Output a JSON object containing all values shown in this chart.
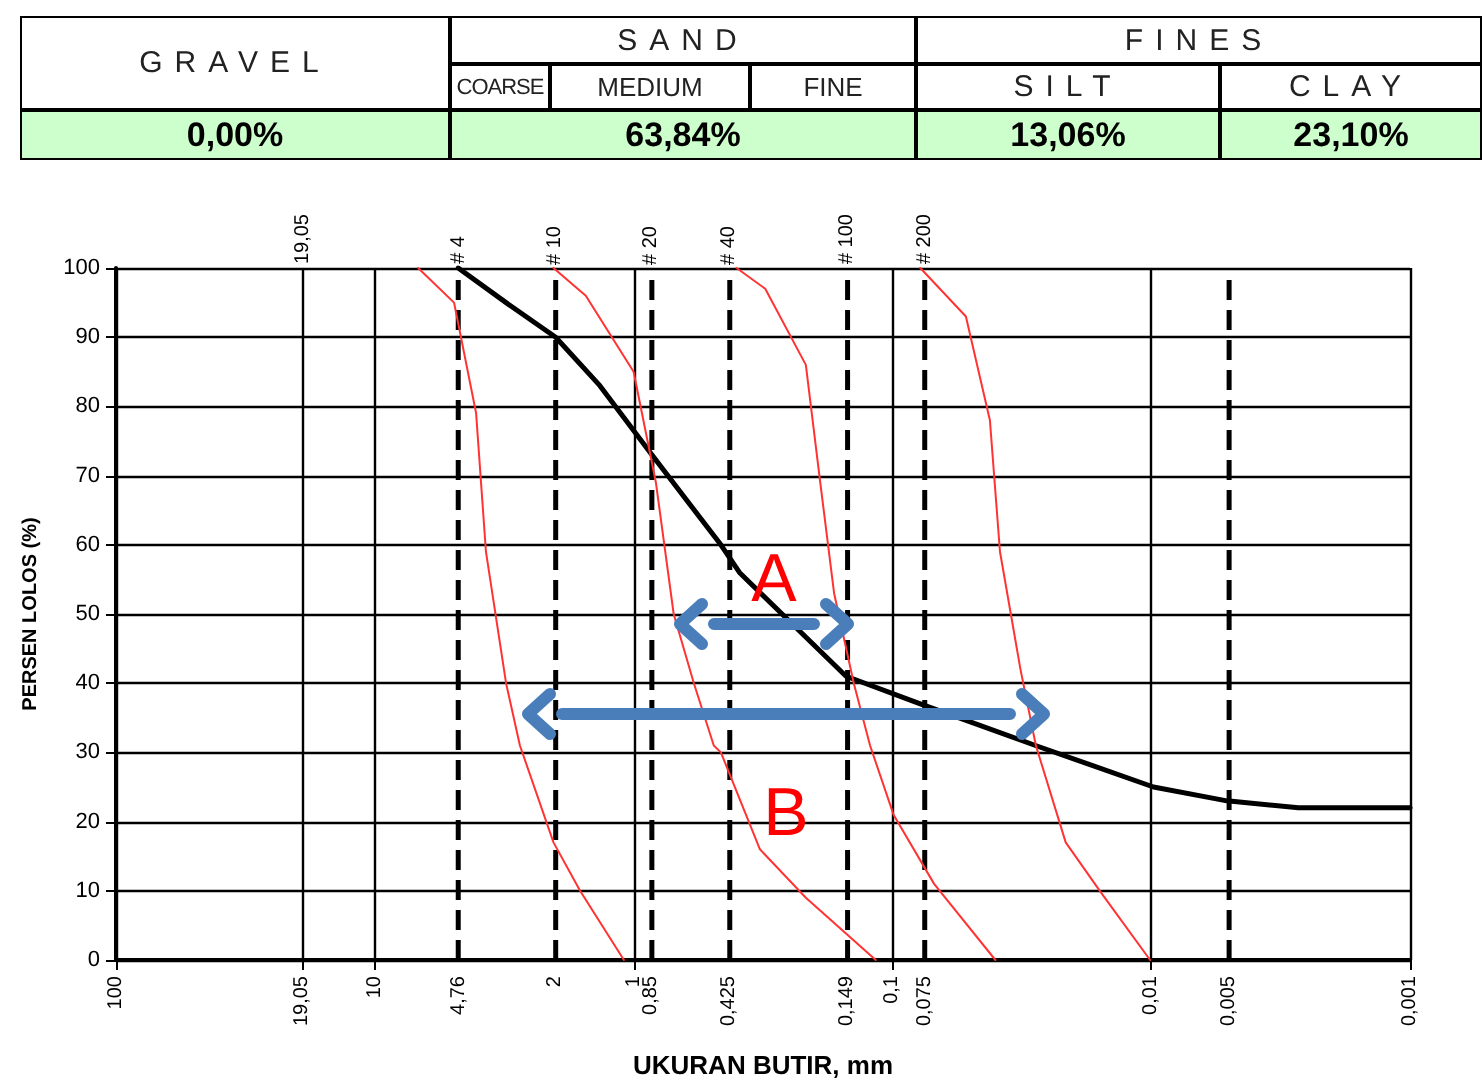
{
  "chart_data": {
    "type": "line",
    "xlabel": "UKURAN BUTIR, mm",
    "ylabel": "PERSEN LOLOS (%)",
    "annotations": [
      "GRAVEL",
      "SAND",
      "FINES",
      "COARSE",
      "MEDIUM",
      "FINE",
      "SILT",
      "CLAY",
      "0,00%",
      "63,84%",
      "13,06%",
      "23,10%",
      "A",
      "B",
      "19,05",
      "# 4",
      "# 10",
      "# 20",
      "# 40",
      "# 100",
      "# 200"
    ],
    "log": "x",
    "grid": true,
    "marker": "none",
    "line_style": "solid",
    "xlim": [
      100,
      0.001
    ],
    "ylim": [
      0,
      100
    ],
    "xticks": [
      100,
      {
        "value": 19.05,
        "label": "19,05"
      },
      10,
      1,
      {
        "value": 0.1,
        "label": "0,1"
      },
      {
        "value": 0.01,
        "label": "0,01"
      },
      {
        "value": 0.001,
        "label": "0,001"
      }
    ],
    "yticks": [
      0,
      10,
      20,
      30,
      40,
      50,
      60,
      70,
      80,
      90,
      100
    ],
    "ref_lines": [
      {
        "axis": "x",
        "value": 4.76,
        "label": "4,76",
        "color": "#000000",
        "line_style": "dashed"
      },
      {
        "axis": "x",
        "value": 2,
        "label": "2",
        "color": "#000000",
        "line_style": "dashed"
      },
      {
        "axis": "x",
        "value": 0.85,
        "label": "0,85",
        "color": "#000000",
        "line_style": "dashed"
      },
      {
        "axis": "x",
        "value": 0.425,
        "label": "0,425",
        "color": "#000000",
        "line_style": "dashed"
      },
      {
        "axis": "x",
        "value": 0.149,
        "label": "0,149",
        "color": "#000000",
        "line_style": "dashed"
      },
      {
        "axis": "x",
        "value": 0.075,
        "label": "0,075",
        "color": "#000000",
        "line_style": "dashed"
      },
      {
        "axis": "x",
        "value": 0.005,
        "label": "0,005",
        "color": "#000000",
        "line_style": "dashed"
      }
    ],
    "series": [
      {
        "color": "#000000",
        "x": [
          4.76,
          3.11,
          2,
          1.35,
          0.85,
          0.46,
          0.39,
          0.151,
          0.078,
          0.028,
          0.0098,
          0.0051,
          0.0027,
          0.001
        ],
        "values": [
          100,
          95,
          90,
          83,
          73,
          60,
          56,
          41,
          37,
          31,
          25,
          23,
          22,
          22
        ]
      },
      {
        "color": "#ff3333",
        "x": [
          6.8,
          4.94,
          4.06,
          3.72,
          3.11,
          2.75,
          2.04,
          1.61,
          1.09
        ],
        "values": [
          100,
          95,
          79,
          59,
          40,
          31,
          17,
          10,
          0
        ]
      },
      {
        "color": "#ff3333",
        "x": [
          2.04,
          1.53,
          1,
          0.82,
          0.7,
          0.585,
          0.49,
          0.46,
          0.325,
          0.216,
          0.116
        ],
        "values": [
          100,
          96,
          85,
          69,
          50,
          40,
          31,
          30,
          16,
          9,
          0
        ]
      },
      {
        "color": "#ff3333",
        "x": [
          0.4,
          0.31,
          0.216,
          0.19,
          0.168,
          0.141,
          0.122,
          0.099,
          0.069,
          0.04
        ],
        "values": [
          100,
          97,
          86,
          69,
          53,
          40,
          31,
          21,
          11,
          0
        ]
      },
      {
        "color": "#ff3333",
        "x": [
          0.078,
          0.052,
          0.042,
          0.0384,
          0.032,
          0.0279,
          0.0214,
          0.0158,
          0.0101
        ],
        "values": [
          100,
          93,
          78,
          59,
          42,
          31,
          17,
          10,
          0
        ]
      }
    ]
  }
}
